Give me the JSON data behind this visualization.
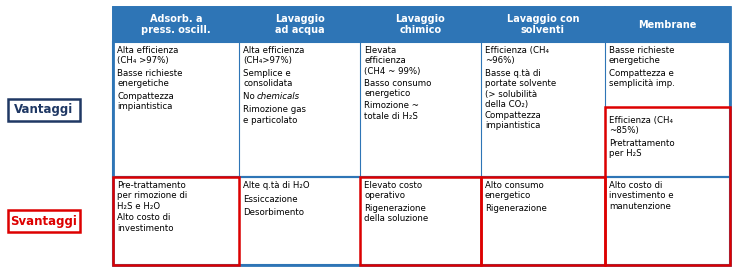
{
  "col_headers": [
    "Adsorb. a\npress. oscill.",
    "Lavaggio\nad acqua",
    "Lavaggio\nchimico",
    "Lavaggio con\nsolventi",
    "Membrane"
  ],
  "vantaggi_col0": [
    "Alta efficienza\n(CH₄ >97%)",
    "Basse richieste\nenergetiche",
    "Compattezza\nimpiantistica"
  ],
  "vantaggi_col1": [
    "Alta efficienza\n(CH₄>97%)",
    "Semplice e\nconsolidata",
    "No \u0000chemicals",
    "Rimozione gas\ne particolato"
  ],
  "vantaggi_col2": [
    "Elevata\nefficienza\n(CH4 ~ 99%)",
    "Basso consumo\nenergetico",
    "Rimozione ~\ntotale di H₂S"
  ],
  "vantaggi_col3": [
    "Efficienza (CH₄\n~96%)",
    "Basse q.tà di\nportate solvente\n(> solubilità\ndella CO₂)",
    "Compattezza\nimpiantistica"
  ],
  "vantaggi_col4_blue": [
    "Basse richieste\nenergetiche",
    "Compattezza e\nsemplicità imp."
  ],
  "vantaggi_col4_red": [
    "Efficienza (CH₄\n~85%)",
    "Pretrattamento\nper H₂S"
  ],
  "svantaggi_col0": [
    "Pre-trattamento\nper rimozione di\nH₂S e H₂O",
    "Alto costo di\ninvestimento"
  ],
  "svantaggi_col1": [
    "Alte q.tà di H₂O",
    "Essiccazione",
    "Desorbimento"
  ],
  "svantaggi_col2": [
    "Elevato costo\noperativo",
    "Rigenerazione\ndella soluzione"
  ],
  "svantaggi_col3": [
    "Alto consumo\nenergetico",
    "Rigenerazione"
  ],
  "svantaggi_col4": [
    "Alto costo di\ninvestimento e\nmanutenzione"
  ],
  "header_color": "#2E75B6",
  "border_color": "#2E75B6",
  "red_color": "#DD0000",
  "dark_blue": "#1F3864",
  "vantaggio_label": "Vantaggi",
  "svantaggio_label": "Svantaggi",
  "vantaggio_border_color": "#1F3864",
  "svantaggio_border_color": "#DD0000"
}
